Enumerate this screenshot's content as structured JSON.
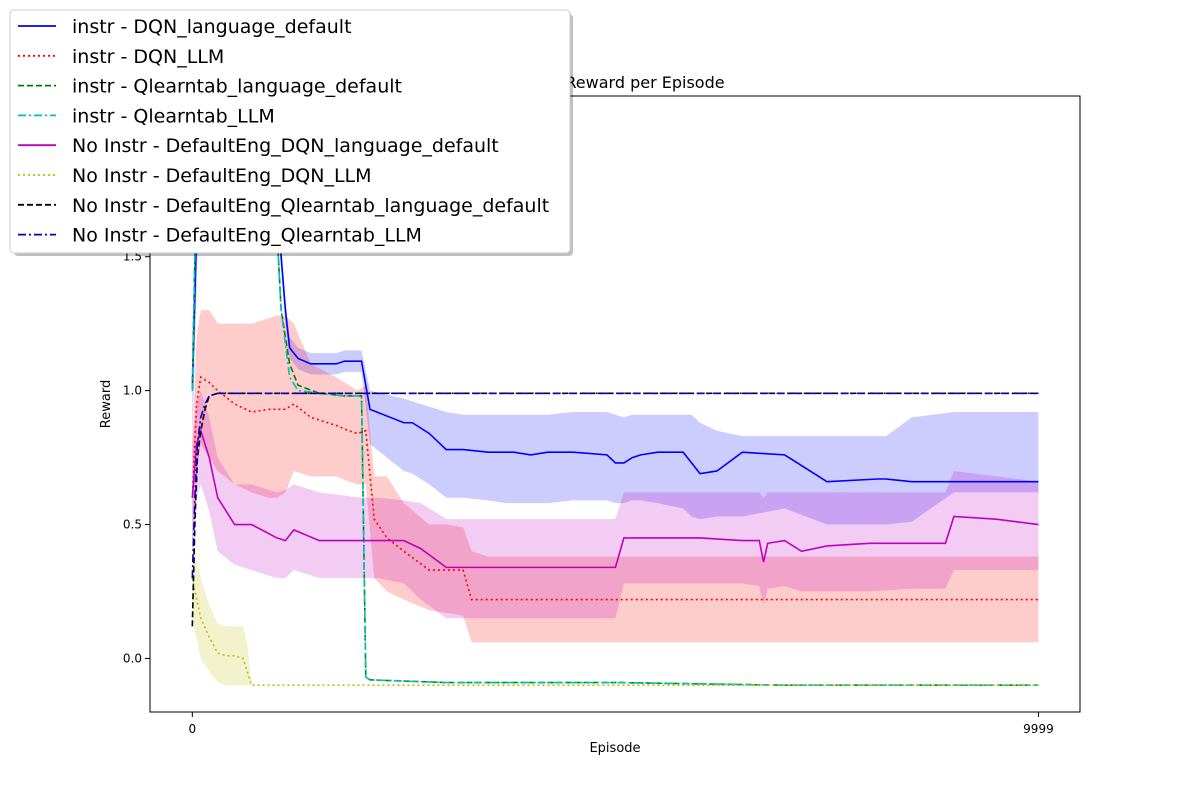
{
  "chart_data": {
    "type": "line",
    "title": "Reward per Episode",
    "xlabel": "Episode",
    "ylabel": "Reward",
    "xlim": [
      -500,
      10490
    ],
    "ylim": [
      -0.2,
      2.1
    ],
    "x_ticks": [
      0,
      9999
    ],
    "y_ticks": [
      0.0,
      0.5,
      1.0,
      1.5
    ],
    "grid": false,
    "legend_position": "top-left",
    "series": [
      {
        "name": "instr - DQN_language_default",
        "color": "#0000ff",
        "style": "solid",
        "band": true,
        "x": [
          0,
          60,
          150,
          250,
          500,
          700,
          950,
          1050,
          1100,
          1150,
          1250,
          1400,
          1700,
          1800,
          2000,
          2100,
          2500,
          2600,
          2800,
          3000,
          3200,
          3500,
          3700,
          3800,
          4000,
          4200,
          4500,
          4900,
          5000,
          5100,
          5200,
          5300,
          5500,
          5800,
          5900,
          6000,
          6200,
          6500,
          7000,
          7500,
          8100,
          8200,
          8500,
          9000,
          9999
        ],
        "y": [
          1.0,
          1.7,
          2.0,
          2.0,
          2.0,
          1.9,
          1.9,
          1.5,
          1.3,
          1.16,
          1.12,
          1.1,
          1.1,
          1.11,
          1.11,
          0.93,
          0.88,
          0.88,
          0.84,
          0.78,
          0.78,
          0.77,
          0.77,
          0.77,
          0.76,
          0.77,
          0.77,
          0.76,
          0.73,
          0.73,
          0.75,
          0.76,
          0.77,
          0.77,
          0.73,
          0.69,
          0.7,
          0.77,
          0.76,
          0.66,
          0.67,
          0.67,
          0.66,
          0.66,
          0.66
        ],
        "band_low": [
          0.8,
          1.5,
          1.9,
          1.95,
          1.95,
          1.85,
          1.85,
          1.45,
          1.25,
          1.12,
          1.08,
          1.06,
          1.06,
          1.07,
          1.07,
          0.8,
          0.7,
          0.69,
          0.65,
          0.6,
          0.6,
          0.59,
          0.58,
          0.58,
          0.58,
          0.58,
          0.59,
          0.59,
          0.58,
          0.58,
          0.59,
          0.59,
          0.58,
          0.56,
          0.53,
          0.52,
          0.53,
          0.53,
          0.56,
          0.5,
          0.5,
          0.5,
          0.51,
          0.62,
          0.62
        ],
        "band_high": [
          1.2,
          1.9,
          2.05,
          2.05,
          2.05,
          1.95,
          1.95,
          1.55,
          1.35,
          1.2,
          1.16,
          1.14,
          1.14,
          1.15,
          1.15,
          1.0,
          0.97,
          0.96,
          0.94,
          0.92,
          0.91,
          0.91,
          0.91,
          0.91,
          0.91,
          0.91,
          0.92,
          0.92,
          0.91,
          0.9,
          0.91,
          0.91,
          0.91,
          0.91,
          0.91,
          0.88,
          0.85,
          0.83,
          0.83,
          0.83,
          0.83,
          0.83,
          0.9,
          0.92,
          0.92
        ]
      },
      {
        "name": "instr - DQN_LLM",
        "color": "#ff0000",
        "style": "dotted",
        "band": true,
        "x": [
          0,
          50,
          100,
          200,
          300,
          500,
          700,
          900,
          1000,
          1100,
          1200,
          1400,
          1700,
          1850,
          1950,
          2050,
          2150,
          2300,
          2500,
          2800,
          3000,
          3200,
          3300,
          3500,
          4000,
          4500,
          5000,
          5500,
          6000,
          6500,
          7000,
          7500,
          8000,
          8500,
          9000,
          9500,
          9999
        ],
        "y": [
          0.6,
          0.95,
          1.05,
          1.03,
          1.0,
          0.95,
          0.92,
          0.93,
          0.93,
          0.93,
          0.95,
          0.9,
          0.87,
          0.85,
          0.84,
          0.85,
          0.52,
          0.45,
          0.4,
          0.33,
          0.33,
          0.33,
          0.22,
          0.22,
          0.22,
          0.22,
          0.22,
          0.22,
          0.22,
          0.22,
          0.22,
          0.22,
          0.22,
          0.22,
          0.22,
          0.22,
          0.22
        ],
        "band_low": [
          0.4,
          0.7,
          0.8,
          0.75,
          0.7,
          0.65,
          0.62,
          0.6,
          0.6,
          0.62,
          0.7,
          0.68,
          0.68,
          0.66,
          0.65,
          0.65,
          0.3,
          0.25,
          0.22,
          0.18,
          0.17,
          0.16,
          0.06,
          0.06,
          0.06,
          0.06,
          0.06,
          0.06,
          0.06,
          0.06,
          0.06,
          0.06,
          0.06,
          0.06,
          0.06,
          0.06,
          0.06
        ],
        "band_high": [
          0.8,
          1.2,
          1.3,
          1.3,
          1.25,
          1.25,
          1.25,
          1.27,
          1.28,
          1.28,
          1.25,
          1.1,
          1.05,
          1.02,
          1.0,
          1.02,
          0.68,
          0.68,
          0.58,
          0.5,
          0.5,
          0.49,
          0.4,
          0.38,
          0.38,
          0.38,
          0.38,
          0.38,
          0.38,
          0.38,
          0.38,
          0.38,
          0.38,
          0.38,
          0.38,
          0.38,
          0.38
        ]
      },
      {
        "name": "instr - Qlearntab_language_default",
        "color": "#008000",
        "style": "dashed",
        "band": false,
        "x": [
          0,
          60,
          150,
          300,
          500,
          700,
          950,
          1050,
          1150,
          1250,
          1500,
          1800,
          1980,
          2000,
          2050,
          2100,
          3000,
          5000,
          7000,
          9999
        ],
        "y": [
          1.0,
          2.0,
          2.0,
          2.0,
          2.0,
          1.9,
          1.9,
          1.3,
          1.1,
          1.02,
          0.99,
          0.98,
          0.98,
          0.98,
          -0.07,
          -0.08,
          -0.09,
          -0.09,
          -0.1,
          -0.1
        ]
      },
      {
        "name": "instr - Qlearntab_LLM",
        "color": "#00bfbf",
        "style": "dashdot",
        "band": false,
        "x": [
          0,
          60,
          150,
          300,
          500,
          700,
          950,
          1050,
          1150,
          1250,
          1500,
          1800,
          1980,
          2000,
          2050,
          2100,
          3000,
          5000,
          7000,
          9999
        ],
        "y": [
          1.0,
          2.0,
          2.0,
          2.0,
          2.0,
          1.9,
          1.9,
          1.3,
          1.05,
          1.0,
          0.99,
          0.98,
          0.98,
          0.98,
          -0.07,
          -0.08,
          -0.09,
          -0.09,
          -0.1,
          -0.1
        ]
      },
      {
        "name": "No Instr - DefaultEng_DQN_language_default",
        "color": "#bf00bf",
        "style": "solid",
        "band": true,
        "x": [
          0,
          50,
          100,
          200,
          300,
          500,
          700,
          1000,
          1100,
          1200,
          1500,
          2000,
          2200,
          2500,
          2700,
          3000,
          3200,
          3500,
          4000,
          4500,
          5000,
          5100,
          6000,
          6500,
          6700,
          6750,
          6800,
          7000,
          7200,
          7500,
          8000,
          8500,
          8900,
          9000,
          9500,
          9999
        ],
        "y": [
          0.6,
          0.8,
          0.85,
          0.75,
          0.6,
          0.5,
          0.5,
          0.45,
          0.44,
          0.48,
          0.44,
          0.44,
          0.44,
          0.44,
          0.41,
          0.34,
          0.34,
          0.34,
          0.34,
          0.34,
          0.34,
          0.45,
          0.45,
          0.44,
          0.44,
          0.36,
          0.43,
          0.44,
          0.4,
          0.42,
          0.43,
          0.43,
          0.43,
          0.53,
          0.52,
          0.5
        ],
        "band_low": [
          0.4,
          0.6,
          0.65,
          0.55,
          0.4,
          0.35,
          0.33,
          0.3,
          0.3,
          0.33,
          0.3,
          0.3,
          0.3,
          0.28,
          0.22,
          0.15,
          0.15,
          0.15,
          0.15,
          0.15,
          0.15,
          0.28,
          0.28,
          0.28,
          0.27,
          0.2,
          0.26,
          0.27,
          0.25,
          0.25,
          0.25,
          0.26,
          0.26,
          0.33,
          0.33,
          0.33
        ],
        "band_high": [
          0.8,
          0.95,
          1.0,
          0.9,
          0.75,
          0.65,
          0.65,
          0.62,
          0.63,
          0.65,
          0.62,
          0.6,
          0.6,
          0.59,
          0.58,
          0.52,
          0.52,
          0.52,
          0.52,
          0.52,
          0.52,
          0.62,
          0.62,
          0.62,
          0.62,
          0.6,
          0.62,
          0.62,
          0.62,
          0.62,
          0.62,
          0.62,
          0.62,
          0.7,
          0.68,
          0.66
        ]
      },
      {
        "name": "No Instr - DefaultEng_DQN_LLM",
        "color": "#bfbf00",
        "style": "dotted",
        "band": true,
        "x": [
          0,
          100,
          200,
          300,
          400,
          500,
          600,
          650,
          700,
          1000,
          3000,
          6000,
          9999
        ],
        "y": [
          0.3,
          0.15,
          0.08,
          0.02,
          0.01,
          0.01,
          0.0,
          -0.05,
          -0.1,
          -0.1,
          -0.1,
          -0.1,
          -0.1
        ],
        "band_low": [
          0.15,
          0.0,
          -0.05,
          -0.09,
          -0.1,
          -0.1,
          -0.1,
          -0.1,
          -0.1,
          -0.1,
          -0.1,
          -0.1,
          -0.1
        ],
        "band_high": [
          0.45,
          0.3,
          0.2,
          0.13,
          0.12,
          0.12,
          0.12,
          0.05,
          -0.1,
          -0.1,
          -0.1,
          -0.1,
          -0.1
        ]
      },
      {
        "name": "No Instr - DefaultEng_Qlearntab_language_default",
        "color": "#000000",
        "style": "dashed",
        "band": false,
        "x": [
          0,
          30,
          60,
          100,
          150,
          200,
          300,
          500,
          1000,
          3000,
          6000,
          9999
        ],
        "y": [
          0.12,
          0.5,
          0.75,
          0.85,
          0.93,
          0.98,
          0.99,
          0.99,
          0.99,
          0.99,
          0.99,
          0.99
        ]
      },
      {
        "name": "No Instr - DefaultEng_Qlearntab_LLM",
        "color": "#0000bf",
        "style": "dashdot",
        "band": false,
        "x": [
          0,
          30,
          60,
          100,
          150,
          200,
          300,
          500,
          1000,
          3000,
          6000,
          9999
        ],
        "y": [
          0.3,
          0.6,
          0.8,
          0.9,
          0.95,
          0.98,
          0.99,
          0.99,
          0.99,
          0.99,
          0.99,
          0.99
        ]
      }
    ]
  }
}
